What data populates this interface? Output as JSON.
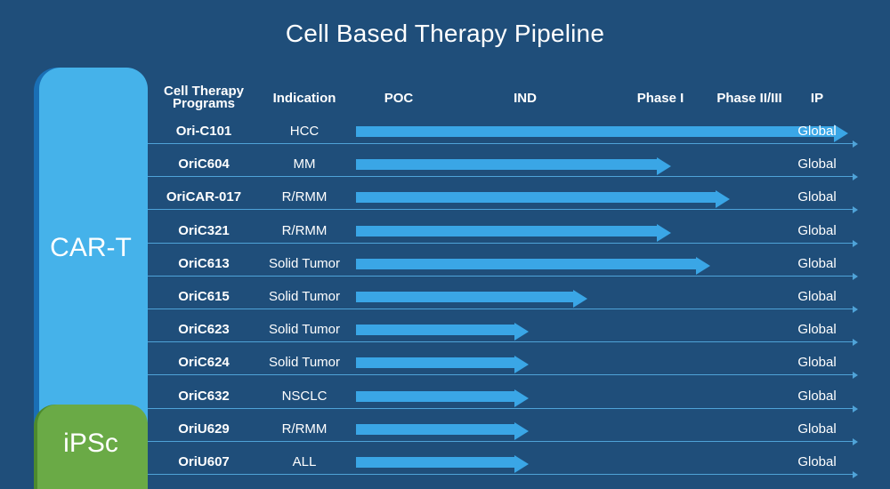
{
  "title": "Cell Based Therapy Pipeline",
  "categories": [
    {
      "label": "CAR-T",
      "color": "#45b2ea"
    },
    {
      "label": "iPSc",
      "color": "#6aaa46"
    }
  ],
  "headers": {
    "programs": "Cell Therapy Programs",
    "indication": "Indication",
    "poc": "POC",
    "ind": "IND",
    "phase1": "Phase I",
    "phase23": "Phase II/III",
    "ip": "IP"
  },
  "colors": {
    "background": "#1f4e7a",
    "arrow": "#3aa6e6",
    "rule": "#4fa3d8"
  },
  "stages": [
    "POC",
    "IND",
    "Phase I",
    "Phase II/III"
  ],
  "rows": [
    {
      "program": "Ori-C101",
      "indication": "HCC",
      "ip": "Global",
      "category": "CAR-T",
      "progress": 1.0
    },
    {
      "program": "OriC604",
      "indication": "MM",
      "ip": "Global",
      "category": "CAR-T",
      "progress": 0.64
    },
    {
      "program": "OriCAR-017",
      "indication": "R/RMM",
      "ip": "Global",
      "category": "CAR-T",
      "progress": 0.76
    },
    {
      "program": "OriC321",
      "indication": "R/RMM",
      "ip": "Global",
      "category": "CAR-T",
      "progress": 0.64
    },
    {
      "program": "OriC613",
      "indication": "Solid Tumor",
      "ip": "Global",
      "category": "CAR-T",
      "progress": 0.72
    },
    {
      "program": "OriC615",
      "indication": "Solid Tumor",
      "ip": "Global",
      "category": "CAR-T",
      "progress": 0.47
    },
    {
      "program": "OriC623",
      "indication": "Solid Tumor",
      "ip": "Global",
      "category": "CAR-T",
      "progress": 0.35
    },
    {
      "program": "OriC624",
      "indication": "Solid Tumor",
      "ip": "Global",
      "category": "CAR-T",
      "progress": 0.35
    },
    {
      "program": "OriC632",
      "indication": "NSCLC",
      "ip": "Global",
      "category": "CAR-T",
      "progress": 0.35
    },
    {
      "program": "OriU629",
      "indication": "R/RMM",
      "ip": "Global",
      "category": "iPSc",
      "progress": 0.35
    },
    {
      "program": "OriU607",
      "indication": "ALL",
      "ip": "Global",
      "category": "iPSc",
      "progress": 0.35
    }
  ]
}
